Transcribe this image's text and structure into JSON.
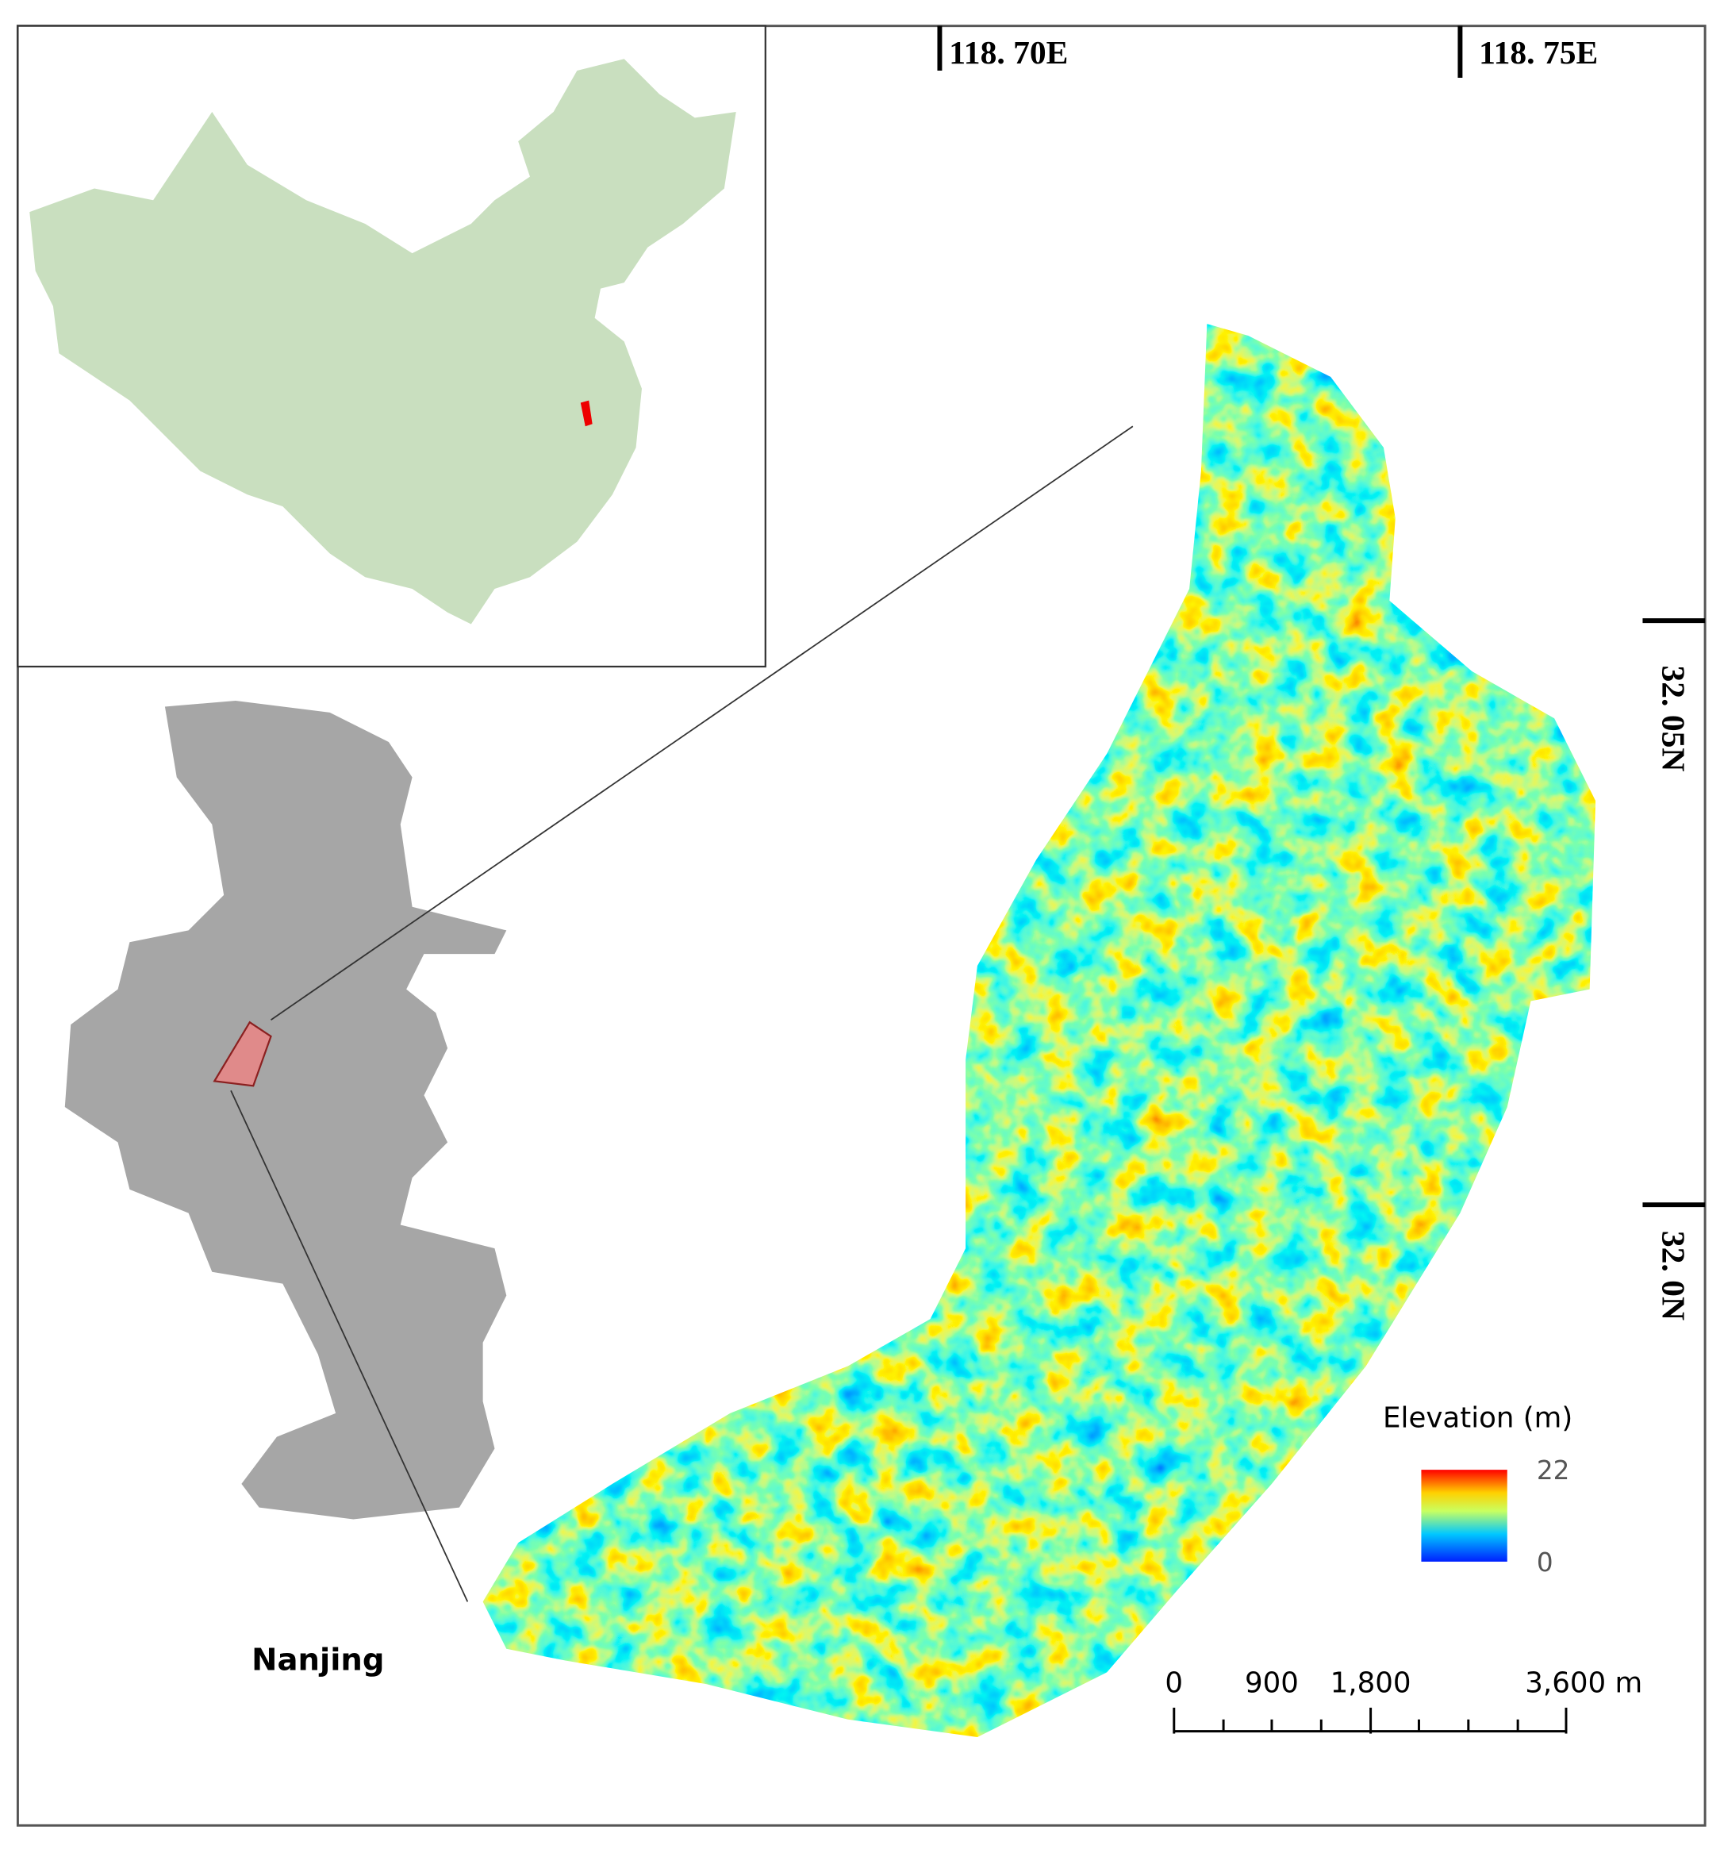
{
  "map": {
    "longitude_labels": [
      "118. 70E",
      "118. 75E"
    ],
    "latitude_labels": [
      "32. 05N",
      "32. 0N"
    ],
    "inset_label": "Nanjing",
    "legend": {
      "title": "Elevation (m)",
      "max": 22,
      "min": 0
    },
    "scale_bar": {
      "labels": [
        "0",
        "900",
        "1,800",
        "3,600 m"
      ]
    }
  }
}
